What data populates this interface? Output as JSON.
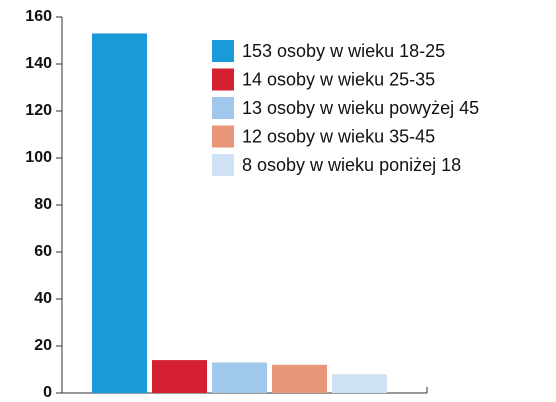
{
  "chart_data": {
    "type": "bar",
    "series": [
      {
        "name": "153 osoby w wieku 18-25",
        "color": "#1a9ad9",
        "values": [
          153
        ]
      },
      {
        "name": "14 osoby w wieku 25-35",
        "color": "#d42030",
        "values": [
          14
        ]
      },
      {
        "name": "13 osoby w wieku powyżej 45",
        "color": "#a0c8ea",
        "values": [
          13
        ]
      },
      {
        "name": "12 osoby w wieku 35-45",
        "color": "#e8967a",
        "values": [
          12
        ]
      },
      {
        "name": "8 osoby w wieku poniżej 18",
        "color": "#cfe2f5",
        "values": [
          8
        ]
      }
    ],
    "ylim": [
      0,
      160
    ],
    "yticks": [
      0,
      20,
      40,
      60,
      80,
      100,
      120,
      140,
      160
    ]
  }
}
